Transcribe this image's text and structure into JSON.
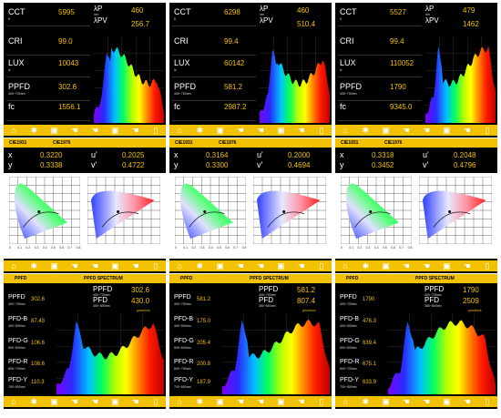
{
  "colors": {
    "accent": "#f2c200",
    "panel": "#000000",
    "grid": "#444444"
  },
  "toolbar_icons": [
    "home-icon",
    "gear-icon",
    "save-icon",
    "hand-icon",
    "hand-icon",
    "save-icon",
    "hand-icon",
    "phone-icon"
  ],
  "spectrum_panels": [
    {
      "cct": "5995",
      "cri": "99.0",
      "lux": "10043",
      "ppfd": "302.6",
      "fc": "1556.1",
      "lp": "460",
      "lpv": "256.7"
    },
    {
      "cct": "6298",
      "cri": "99.4",
      "lux": "60142",
      "ppfd": "581.2",
      "fc": "2987.2",
      "lp": "460",
      "lpv": "510.4"
    },
    {
      "cct": "5527",
      "cri": "99.4",
      "lux": "110052",
      "ppfd": "1790",
      "fc": "9345.0",
      "lp": "479",
      "lpv": "1462"
    }
  ],
  "labels": {
    "cct": "CCT",
    "cct_unit": "K",
    "cri": "CRI",
    "lux": "LUX",
    "lux_unit": "lx",
    "ppfd": "PPFD",
    "ppfd_range": "400~700nm",
    "fc": "fc",
    "lp": "λP",
    "lp_unit": "nm",
    "lpv": "λPV",
    "cie1931": "CIE1931",
    "cie1976": "CIE1976",
    "x": "x",
    "y": "y",
    "u": "u'",
    "v": "v'",
    "ppfd_tab": "PPFD",
    "ppfd_spectrum_tab": "PPFD SPECTRUM",
    "pfd": "PFD",
    "pfd_range": "350~800nm",
    "pfdb": "PFD-B",
    "pfdb_range": "400~500nm",
    "pfdg": "PFD-G",
    "pfdg_range": "500~600nm",
    "pfdr": "PFD-R",
    "pfdr_range": "600~700nm",
    "pfdy": "PFD-Y",
    "pfdy_range": "700~800nm",
    "umol": "μmol/m²s"
  },
  "cie_panels": [
    {
      "x": "0.3220",
      "y": "0.3338",
      "u": "0.2025",
      "v": "0.4722"
    },
    {
      "x": "0.3164",
      "y": "0.3300",
      "u": "0.2000",
      "v": "0.4694"
    },
    {
      "x": "0.3318",
      "y": "0.3452",
      "u": "0.2048",
      "v": "0.4796"
    }
  ],
  "cie_axis_ticks": [
    "0",
    "0.1",
    "0.2",
    "0.3",
    "0.4",
    "0.5",
    "0.6",
    "0.7",
    "0.8"
  ],
  "ppfd_panels": [
    {
      "ppfd": "302.6",
      "pfd": "430.0",
      "ppfd_left": "302.6",
      "pfdb": "87.43",
      "pfdg": "106.6",
      "pfdr": "108.6",
      "pfdy": "110.3"
    },
    {
      "ppfd": "581.2",
      "pfd": "807.4",
      "ppfd_left": "581.2",
      "pfdb": "175.0",
      "pfdg": "205.4",
      "pfdr": "200.8",
      "pfdy": "187.9"
    },
    {
      "ppfd": "1790",
      "pfd": "2509",
      "ppfd_left": "1790",
      "pfdb": "476.3",
      "pfdg": "639.4",
      "pfdr": "675.1",
      "pfdy": "633.9"
    }
  ]
}
